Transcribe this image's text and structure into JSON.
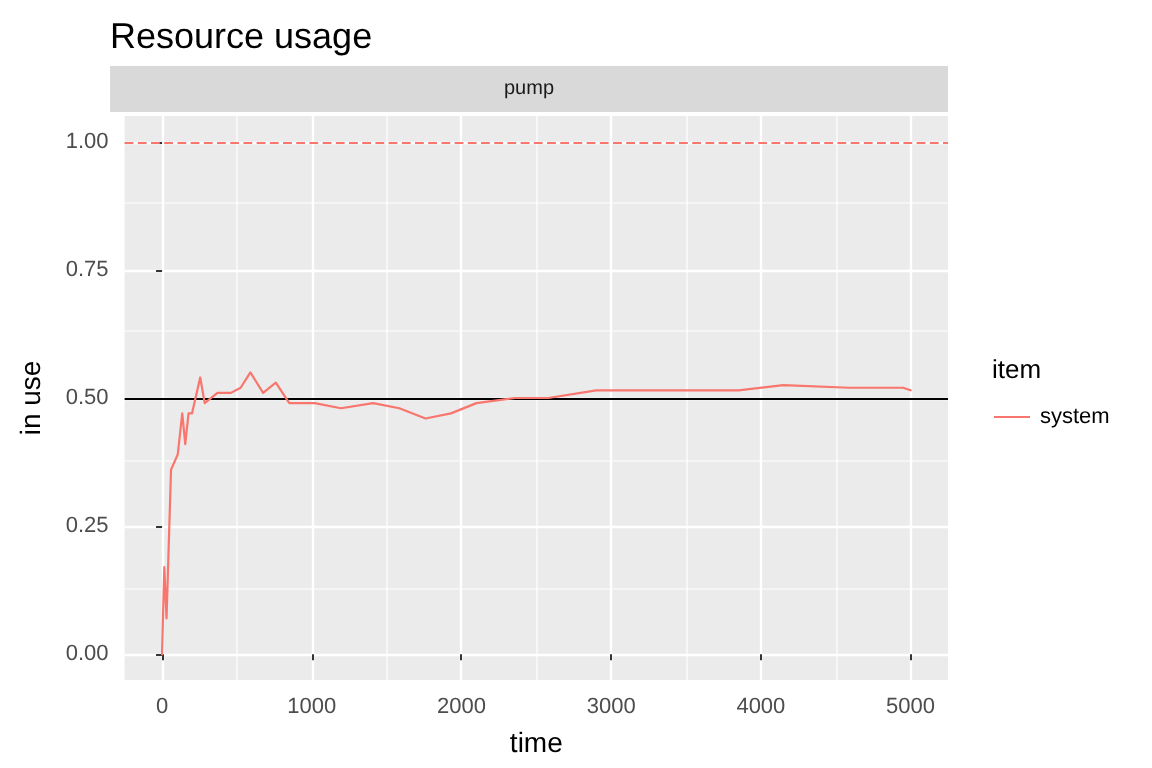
{
  "chart_data": {
    "type": "line",
    "title": "Resource usage",
    "subtitle": "pump",
    "xlabel": "time",
    "ylabel": "in use",
    "legend_title": "item",
    "x": [
      0,
      15,
      30,
      60,
      105,
      135,
      155,
      177,
      200,
      255,
      285,
      370,
      460,
      525,
      590,
      675,
      760,
      850,
      1020,
      1195,
      1410,
      1585,
      1760,
      1930,
      2100,
      2360,
      2580,
      2900,
      3420,
      3850,
      4150,
      4590,
      4950,
      5000
    ],
    "series": [
      {
        "name": "system",
        "color": "#f8766d",
        "values": [
          0,
          0.17,
          0.07,
          0.36,
          0.39,
          0.47,
          0.41,
          0.47,
          0.47,
          0.54,
          0.49,
          0.51,
          0.51,
          0.52,
          0.55,
          0.51,
          0.53,
          0.49,
          0.49,
          0.48,
          0.49,
          0.48,
          0.46,
          0.47,
          0.49,
          0.5,
          0.5,
          0.515,
          0.515,
          0.515,
          0.525,
          0.52,
          0.52,
          0.515
        ]
      }
    ],
    "xlim": [
      -250,
      5250
    ],
    "xticks": [
      0,
      1000,
      2000,
      3000,
      4000,
      5000
    ],
    "ylim": [
      -0.05,
      1.05
    ],
    "yticks": [
      {
        "value": 0,
        "label": "0.00"
      },
      {
        "value": 0.25,
        "label": "0.25"
      },
      {
        "value": 0.5,
        "label": "0.50"
      },
      {
        "value": 0.75,
        "label": "0.75"
      },
      {
        "value": 1,
        "label": "1.00"
      }
    ],
    "ref_lines": [
      {
        "axis": "y",
        "value": 1,
        "color": "#f8766d",
        "line_style": "dashed"
      },
      {
        "axis": "y",
        "value": 0.5,
        "color": "#000000",
        "line_style": "solid"
      }
    ],
    "grid": true,
    "legend": "right",
    "marker": "none",
    "line_style": "solid"
  }
}
